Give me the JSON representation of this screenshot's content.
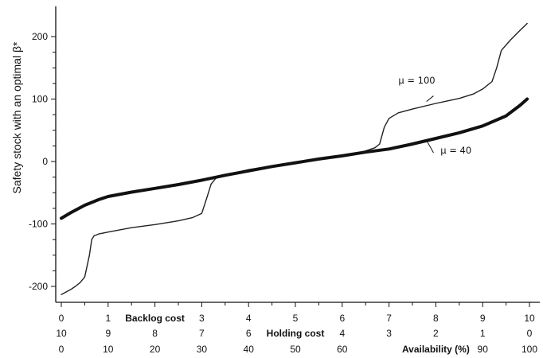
{
  "chart_data": {
    "type": "line",
    "ylabel": "Safety stock with an optimal β*",
    "ylim": [
      -215,
      245
    ],
    "y_ticks": [
      200,
      100,
      0,
      -100,
      -200
    ],
    "y_tick_labels": [
      "200",
      "100",
      "0",
      "-100",
      "-200"
    ],
    "x_scale": "availability (%)",
    "xlim": [
      0,
      100
    ],
    "grid": false,
    "legend": "none",
    "axis_rows": [
      {
        "title": "Backlog cost",
        "title_at": 20,
        "labels": [
          {
            "at": 0,
            "text": "0"
          },
          {
            "at": 10,
            "text": "1"
          },
          {
            "at": 30,
            "text": "3"
          },
          {
            "at": 40,
            "text": "4"
          },
          {
            "at": 50,
            "text": "5"
          },
          {
            "at": 60,
            "text": "6"
          },
          {
            "at": 70,
            "text": "7"
          },
          {
            "at": 80,
            "text": "8"
          },
          {
            "at": 90,
            "text": "9"
          },
          {
            "at": 100,
            "text": "10"
          }
        ]
      },
      {
        "title": "Holding cost",
        "title_at": 50,
        "labels": [
          {
            "at": 0,
            "text": "10"
          },
          {
            "at": 10,
            "text": "9"
          },
          {
            "at": 20,
            "text": "8"
          },
          {
            "at": 30,
            "text": "7"
          },
          {
            "at": 40,
            "text": "6"
          },
          {
            "at": 60,
            "text": "4"
          },
          {
            "at": 70,
            "text": "3"
          },
          {
            "at": 80,
            "text": "2"
          },
          {
            "at": 90,
            "text": "1"
          },
          {
            "at": 100,
            "text": "0"
          }
        ]
      },
      {
        "title": "Availability (%)",
        "title_at": 80,
        "labels": [
          {
            "at": 0,
            "text": "0"
          },
          {
            "at": 10,
            "text": "10"
          },
          {
            "at": 20,
            "text": "20"
          },
          {
            "at": 30,
            "text": "30"
          },
          {
            "at": 40,
            "text": "40"
          },
          {
            "at": 50,
            "text": "50"
          },
          {
            "at": 60,
            "text": "60"
          },
          {
            "at": 90,
            "text": "90"
          },
          {
            "at": 100,
            "text": "100"
          }
        ]
      }
    ],
    "series": [
      {
        "name": "μ = 100",
        "label_at": [
          72,
          130
        ],
        "pointer": [
          [
            78,
            96
          ],
          [
            79.5,
            105
          ]
        ],
        "color": "#222222",
        "weight": "thin",
        "points": [
          [
            0,
            -213
          ],
          [
            1,
            -209
          ],
          [
            2,
            -205
          ],
          [
            3,
            -200
          ],
          [
            4,
            -194
          ],
          [
            5,
            -185
          ],
          [
            6,
            -150
          ],
          [
            6.5,
            -125
          ],
          [
            7,
            -119
          ],
          [
            8,
            -116
          ],
          [
            10,
            -113
          ],
          [
            15,
            -106
          ],
          [
            20,
            -101
          ],
          [
            25,
            -95
          ],
          [
            28,
            -90
          ],
          [
            30,
            -83
          ],
          [
            31,
            -60
          ],
          [
            32,
            -36
          ],
          [
            33,
            -27
          ],
          [
            34,
            -24
          ],
          [
            35,
            -22
          ],
          [
            40,
            -13
          ],
          [
            45,
            -7
          ],
          [
            50,
            -1
          ],
          [
            55,
            3
          ],
          [
            60,
            9
          ],
          [
            63,
            13
          ],
          [
            65,
            17
          ],
          [
            67,
            22
          ],
          [
            68,
            28
          ],
          [
            69,
            55
          ],
          [
            70,
            69
          ],
          [
            72,
            78
          ],
          [
            75,
            84
          ],
          [
            80,
            93
          ],
          [
            85,
            101
          ],
          [
            88,
            108
          ],
          [
            90,
            116
          ],
          [
            92,
            128
          ],
          [
            93,
            150
          ],
          [
            94,
            178
          ],
          [
            96,
            195
          ],
          [
            98,
            210
          ],
          [
            99.5,
            221
          ]
        ]
      },
      {
        "name": "μ = 40",
        "label_at": [
          81,
          18
        ],
        "pointer": [
          [
            78,
            34
          ],
          [
            79.5,
            14
          ]
        ],
        "color": "#111111",
        "weight": "thick",
        "points": [
          [
            0,
            -91
          ],
          [
            2,
            -82
          ],
          [
            5,
            -70
          ],
          [
            8,
            -61
          ],
          [
            10,
            -56
          ],
          [
            15,
            -49
          ],
          [
            20,
            -43
          ],
          [
            25,
            -37
          ],
          [
            30,
            -30
          ],
          [
            35,
            -22
          ],
          [
            40,
            -15
          ],
          [
            45,
            -8
          ],
          [
            50,
            -2
          ],
          [
            55,
            4
          ],
          [
            60,
            9
          ],
          [
            65,
            15
          ],
          [
            70,
            20
          ],
          [
            75,
            28
          ],
          [
            80,
            37
          ],
          [
            85,
            46
          ],
          [
            90,
            57
          ],
          [
            95,
            73
          ],
          [
            98,
            90
          ],
          [
            99.5,
            100
          ]
        ]
      }
    ]
  }
}
